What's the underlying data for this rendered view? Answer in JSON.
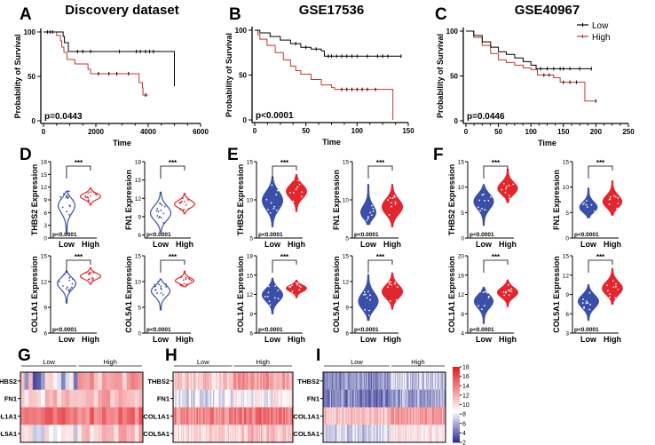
{
  "panel_letters": [
    "A",
    "B",
    "C",
    "D",
    "E",
    "F",
    "G",
    "H",
    "I"
  ],
  "chart_data": {
    "km": [
      {
        "id": "A",
        "type": "line",
        "title": "Discovery dataset",
        "xlabel": "Time",
        "ylabel": "Probability of Survival",
        "xlim": [
          0,
          6000
        ],
        "xticks": [
          0,
          2000,
          4000,
          6000
        ],
        "ylim": [
          0,
          100
        ],
        "yticks": [
          0,
          50,
          100
        ],
        "pvalue": "p=0.0443",
        "series": [
          {
            "name": "Low",
            "color": "#000000",
            "steps": [
              [
                0,
                100
              ],
              [
                700,
                100
              ],
              [
                750,
                95
              ],
              [
                800,
                88
              ],
              [
                950,
                78
              ],
              [
                5000,
                78
              ],
              [
                5000,
                39
              ]
            ],
            "censored": [
              150,
              250,
              350,
              1300,
              1500,
              1800,
              2900,
              3550,
              3700,
              3900,
              4050,
              4200
            ]
          },
          {
            "name": "High",
            "color": "#c0392b",
            "steps": [
              [
                0,
                100
              ],
              [
                500,
                100
              ],
              [
                500,
                96
              ],
              [
                650,
                90
              ],
              [
                700,
                83
              ],
              [
                780,
                77
              ],
              [
                900,
                69
              ],
              [
                1200,
                64
              ],
              [
                1700,
                58
              ],
              [
                1800,
                53
              ],
              [
                3650,
                53
              ],
              [
                3650,
                43
              ],
              [
                3780,
                37
              ],
              [
                3800,
                29
              ],
              [
                4000,
                29
              ]
            ],
            "censored": [
              2100,
              2500,
              2800,
              3250,
              3900
            ]
          }
        ]
      },
      {
        "id": "B",
        "type": "line",
        "title": "GSE17536",
        "xlabel": "Time",
        "ylabel": "Probability of Survival",
        "xlim": [
          0,
          150
        ],
        "xticks": [
          0,
          50,
          100,
          150
        ],
        "ylim": [
          0,
          100
        ],
        "yticks": [
          0,
          50,
          100
        ],
        "pvalue": "p<0.0001",
        "series": [
          {
            "name": "Low",
            "color": "#000000",
            "steps": [
              [
                0,
                100
              ],
              [
                5,
                97
              ],
              [
                15,
                93
              ],
              [
                25,
                89
              ],
              [
                35,
                85
              ],
              [
                45,
                81
              ],
              [
                55,
                79
              ],
              [
                65,
                77
              ],
              [
                68,
                71
              ],
              [
                143,
                71
              ]
            ],
            "censored": [
              40,
              50,
              60,
              72,
              75,
              80,
              85,
              90,
              95,
              100,
              110,
              120,
              125,
              130,
              143
            ]
          },
          {
            "name": "High",
            "color": "#c0392b",
            "steps": [
              [
                0,
                100
              ],
              [
                3,
                95
              ],
              [
                5,
                90
              ],
              [
                12,
                83
              ],
              [
                20,
                75
              ],
              [
                28,
                67
              ],
              [
                35,
                60
              ],
              [
                40,
                55
              ],
              [
                45,
                51
              ],
              [
                55,
                45
              ],
              [
                65,
                39
              ],
              [
                75,
                36
              ],
              [
                78,
                34
              ],
              [
                135,
                34
              ],
              [
                135,
                0
              ]
            ],
            "censored": [
              85,
              90,
              95,
              100,
              105,
              110,
              118
            ]
          }
        ]
      },
      {
        "id": "C",
        "type": "line",
        "title": "GSE40967",
        "xlabel": "Time",
        "ylabel": "Probability of Survival",
        "xlim": [
          0,
          250
        ],
        "xticks": [
          0,
          50,
          100,
          150,
          200,
          250
        ],
        "ylim": [
          0,
          100
        ],
        "yticks": [
          0,
          50,
          100
        ],
        "pvalue": "p=0.0446",
        "legend": {
          "position": "top-right",
          "items": [
            "Low",
            "High"
          ]
        },
        "series": [
          {
            "name": "Low",
            "color": "#000000",
            "steps": [
              [
                0,
                100
              ],
              [
                12,
                95
              ],
              [
                25,
                88
              ],
              [
                38,
                82
              ],
              [
                50,
                77
              ],
              [
                62,
                74
              ],
              [
                75,
                70
              ],
              [
                88,
                66
              ],
              [
                100,
                62
              ],
              [
                108,
                58
              ],
              [
                193,
                58
              ]
            ],
            "censored": [
              115,
              125,
              135,
              145,
              150,
              160,
              175,
              193
            ]
          },
          {
            "name": "High",
            "color": "#c0392b",
            "steps": [
              [
                0,
                100
              ],
              [
                12,
                93
              ],
              [
                25,
                84
              ],
              [
                38,
                75
              ],
              [
                50,
                68
              ],
              [
                62,
                65
              ],
              [
                75,
                62
              ],
              [
                88,
                59
              ],
              [
                100,
                57
              ],
              [
                110,
                51
              ],
              [
                130,
                51
              ],
              [
                135,
                48
              ],
              [
                145,
                43
              ],
              [
                183,
                43
              ],
              [
                183,
                22
              ],
              [
                200,
                22
              ]
            ],
            "censored": [
              120,
              128,
              150,
              160,
              170,
              200
            ]
          }
        ]
      }
    ],
    "violins": [
      {
        "id": "D",
        "type": "violin",
        "categories": [
          "Low",
          "High"
        ],
        "significance": "***",
        "pvalue": "p<0.0001",
        "style": "outline",
        "plots": [
          {
            "ylabel": "THBS2 Expression",
            "ylim": [
              0,
              18
            ],
            "yticks": [
              0,
              3,
              6,
              9,
              12,
              15,
              18
            ],
            "low": {
              "min": 1,
              "median": 8.5,
              "max": 11
            },
            "high": {
              "min": 7.8,
              "median": 9.8,
              "max": 11.8
            }
          },
          {
            "ylabel": "FN1 Expression",
            "ylim": [
              5.5,
              18
            ],
            "yticks": [
              6,
              9,
              12,
              15,
              18
            ],
            "low": {
              "min": 6.5,
              "median": 9.5,
              "max": 13
            },
            "high": {
              "min": 9.5,
              "median": 11,
              "max": 12.8
            }
          },
          {
            "ylabel": "COL1A1 Expression",
            "ylim": [
              6,
              15
            ],
            "yticks": [
              6,
              9,
              12,
              15
            ],
            "low": {
              "min": 9.5,
              "median": 12,
              "max": 13.2
            },
            "high": {
              "min": 11.7,
              "median": 12.6,
              "max": 13.6
            }
          },
          {
            "ylabel": "COL5A1 Expression",
            "ylim": [
              0,
              15
            ],
            "yticks": [
              0,
              5,
              10,
              15
            ],
            "low": {
              "min": 4.5,
              "median": 8.5,
              "max": 10.5
            },
            "high": {
              "min": 9,
              "median": 10,
              "max": 12
            }
          }
        ]
      },
      {
        "id": "E",
        "type": "violin",
        "categories": [
          "Low",
          "High"
        ],
        "significance": "***",
        "pvalue": "p<0.0001",
        "style": "filled",
        "plots": [
          {
            "ylabel": "THBS2 Expression",
            "ylim": [
              5,
              15
            ],
            "yticks": [
              5,
              10,
              15
            ],
            "low": {
              "min": 6.5,
              "median": 10,
              "max": 13
            },
            "high": {
              "min": 8.5,
              "median": 11.2,
              "max": 13.3
            }
          },
          {
            "ylabel": "FN1 Expression",
            "ylim": [
              5,
              15
            ],
            "yticks": [
              5,
              10,
              15
            ],
            "low": {
              "min": 6.8,
              "median": 7.8,
              "max": 12
            },
            "high": {
              "min": 6.5,
              "median": 9,
              "max": 12
            }
          },
          {
            "ylabel": "COL1A1 Expression",
            "ylim": [
              6,
              18
            ],
            "yticks": [
              6,
              9,
              12,
              15,
              18
            ],
            "low": {
              "min": 9,
              "median": 12,
              "max": 14.5
            },
            "high": {
              "min": 11.5,
              "median": 13,
              "max": 14.2
            }
          },
          {
            "ylabel": "COL5A1 Expression",
            "ylim": [
              6,
              15
            ],
            "yticks": [
              6,
              9,
              12,
              15
            ],
            "low": {
              "min": 7.5,
              "median": 9.5,
              "max": 12.8
            },
            "high": {
              "min": 8.8,
              "median": 10.8,
              "max": 13
            }
          }
        ]
      },
      {
        "id": "F",
        "type": "violin",
        "categories": [
          "Low",
          "High"
        ],
        "significance": "***",
        "pvalue": "p<0.0001",
        "style": "filled",
        "plots": [
          {
            "ylabel": "THBS2 Expression",
            "ylim": [
              0,
              15
            ],
            "yticks": [
              0,
              5,
              10,
              15
            ],
            "low": {
              "min": 2.5,
              "median": 7.5,
              "max": 10.5
            },
            "high": {
              "min": 7,
              "median": 9.5,
              "max": 13.5
            }
          },
          {
            "ylabel": "FN1 Expression",
            "ylim": [
              0,
              15
            ],
            "yticks": [
              0,
              5,
              10,
              15
            ],
            "low": {
              "min": 4,
              "median": 5.6,
              "max": 9.8
            },
            "high": {
              "min": 4.5,
              "median": 6.8,
              "max": 11.2
            }
          },
          {
            "ylabel": "COL1A1 Expression",
            "ylim": [
              4,
              20
            ],
            "yticks": [
              4,
              8,
              12,
              16,
              20
            ],
            "low": {
              "min": 6,
              "median": 11,
              "max": 13.5
            },
            "high": {
              "min": 9.5,
              "median": 12.5,
              "max": 15
            }
          },
          {
            "ylabel": "COL5A1 Expression",
            "ylim": [
              3,
              15
            ],
            "yticks": [
              3,
              6,
              9,
              12,
              15
            ],
            "low": {
              "min": 5,
              "median": 8,
              "max": 10.5
            },
            "high": {
              "min": 7.5,
              "median": 9.8,
              "max": 13
            }
          }
        ]
      }
    ],
    "heatmaps": [
      {
        "id": "G",
        "type": "heatmap",
        "groups": [
          "Low",
          "High"
        ],
        "rows": [
          {
            "gene": "THBS2",
            "low": 7,
            "high": 12
          },
          {
            "gene": "FN1",
            "low": 10.5,
            "high": 12
          },
          {
            "gene": "COL1A1",
            "low": 14,
            "high": 14.5
          },
          {
            "gene": "COL5A1",
            "low": 8.5,
            "high": 11
          }
        ]
      },
      {
        "id": "H",
        "type": "heatmap",
        "groups": [
          "Low",
          "High"
        ],
        "rows": [
          {
            "gene": "THBS2",
            "low": 11,
            "high": 12.5
          },
          {
            "gene": "FN1",
            "low": 7.8,
            "high": 8.8
          },
          {
            "gene": "COL1A1",
            "low": 13.5,
            "high": 14.2
          },
          {
            "gene": "COL5A1",
            "low": 10,
            "high": 11
          }
        ]
      },
      {
        "id": "I",
        "type": "heatmap",
        "groups": [
          "Low",
          "High"
        ],
        "rows": [
          {
            "gene": "THBS2",
            "low": 5,
            "high": 6.8
          },
          {
            "gene": "FN1",
            "low": 4.5,
            "high": 5.5
          },
          {
            "gene": "COL1A1",
            "low": 11,
            "high": 12.5
          },
          {
            "gene": "COL5A1",
            "low": 7,
            "high": 9.5
          }
        ]
      }
    ],
    "colorbar": {
      "range": [
        2,
        18
      ],
      "ticks": [
        2,
        4,
        6,
        8,
        10,
        12,
        14,
        16,
        18
      ],
      "low_color": "#2e3192",
      "mid_color": "#ffffff",
      "high_color": "#e31e24",
      "mid_value": 8.5
    }
  }
}
